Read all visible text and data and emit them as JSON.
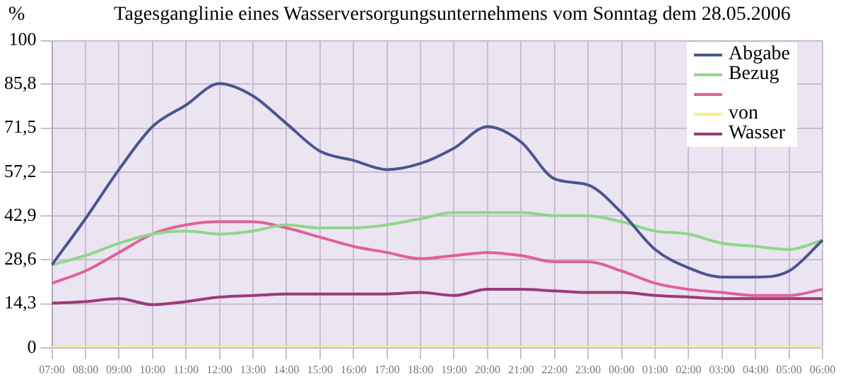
{
  "chart_data": {
    "type": "line",
    "title": "Tagesganglinie  eines Wasserversorgungsunternehmens vom Sonntag dem  28.05.2006",
    "ylabel": "%",
    "categories": [
      "07:00",
      "08:00",
      "09:00",
      "10:00",
      "11:00",
      "12:00",
      "13:00",
      "14:00",
      "15:00",
      "16:00",
      "17:00",
      "18:00",
      "19:00",
      "20:00",
      "21:00",
      "22:00",
      "23:00",
      "00:00",
      "01:00",
      "02:00",
      "03:00",
      "04:00",
      "05:00",
      "06:00"
    ],
    "series": [
      {
        "name": "Abgabe",
        "color": "#4a5590",
        "values": [
          27,
          42,
          58,
          72,
          79,
          86,
          82,
          73,
          64,
          61,
          58,
          60,
          65,
          72,
          67,
          55,
          53,
          44,
          32,
          26,
          23,
          23,
          25,
          35
        ]
      },
      {
        "name": "Bezug",
        "color": "#8fd68a",
        "values": [
          27,
          30,
          34,
          37,
          38,
          37,
          38,
          40,
          39,
          39,
          40,
          42,
          44,
          44,
          44,
          43,
          43,
          41,
          38,
          37,
          34,
          33,
          32,
          35
        ]
      },
      {
        "color": "#e0609a",
        "values": [
          21,
          25,
          31,
          37,
          40,
          41,
          41,
          39,
          36,
          33,
          31,
          29,
          30,
          31,
          30,
          28,
          28,
          25,
          21,
          19,
          18,
          17,
          17,
          19
        ]
      },
      {
        "name": "von",
        "color": "#f4f07a",
        "values": [
          0,
          0,
          0,
          0,
          0,
          0,
          0,
          0,
          0,
          0,
          0,
          0,
          0,
          0,
          0,
          0,
          0,
          0,
          0,
          0,
          0,
          0,
          0,
          0
        ]
      },
      {
        "name": "Wasser",
        "color": "#9c3a78",
        "values": [
          14.5,
          15,
          16,
          14,
          15,
          16.5,
          17,
          17.5,
          17.5,
          17.5,
          17.5,
          18,
          17,
          19,
          19,
          18.5,
          18,
          18,
          17,
          16.5,
          16,
          16,
          16,
          16
        ]
      }
    ],
    "ylim": [
      0,
      100
    ],
    "yticks": [
      0,
      {
        "value": 14.3,
        "label": "14,3"
      },
      {
        "value": 28.6,
        "label": "28,6"
      },
      {
        "value": 42.9,
        "label": "42,9"
      },
      {
        "value": 57.2,
        "label": "57,2"
      },
      {
        "value": 71.5,
        "label": "71,5"
      },
      {
        "value": 85.8,
        "label": "85,8"
      },
      100
    ],
    "grid": true,
    "legend": "top right",
    "marker": "none",
    "line_style": "solid"
  }
}
